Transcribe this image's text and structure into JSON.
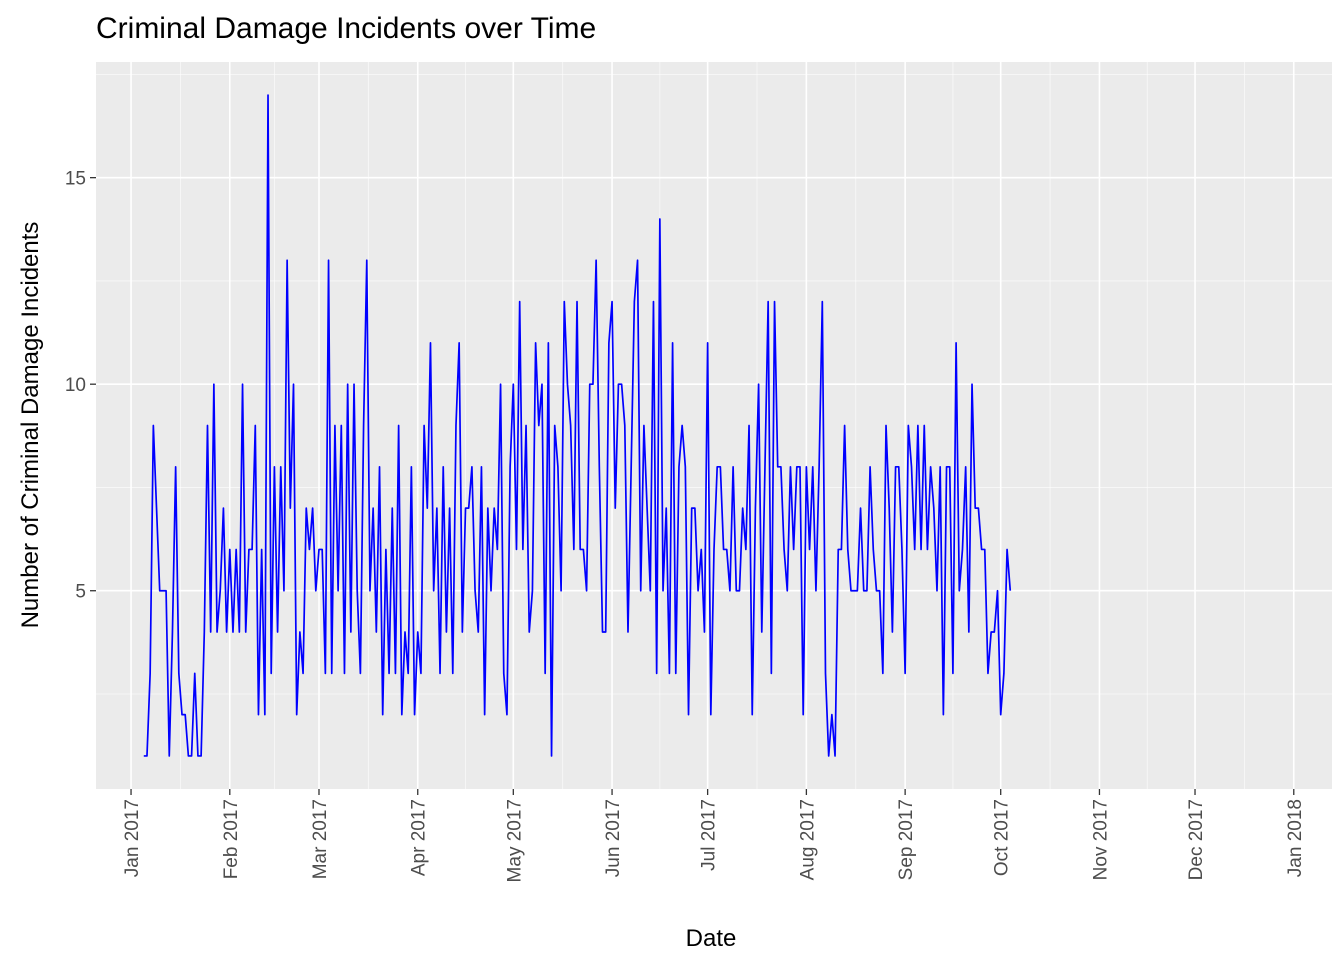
{
  "chart_data": {
    "type": "line",
    "title": "Criminal Damage Incidents over Time",
    "xlabel": "Date",
    "ylabel": "Number of Criminal Damage Incidents",
    "x_type": "date",
    "xlim": [
      "2016-12-21",
      "2018-01-13"
    ],
    "ylim": [
      0.2,
      17.8
    ],
    "yticks": [
      5,
      10,
      15
    ],
    "xticks": [
      {
        "date": "2017-01-01",
        "label": "Jan 2017"
      },
      {
        "date": "2017-02-01",
        "label": "Feb 2017"
      },
      {
        "date": "2017-03-01",
        "label": "Mar 2017"
      },
      {
        "date": "2017-04-01",
        "label": "Apr 2017"
      },
      {
        "date": "2017-05-01",
        "label": "May 2017"
      },
      {
        "date": "2017-06-01",
        "label": "Jun 2017"
      },
      {
        "date": "2017-07-01",
        "label": "Jul 2017"
      },
      {
        "date": "2017-08-01",
        "label": "Aug 2017"
      },
      {
        "date": "2017-09-01",
        "label": "Sep 2017"
      },
      {
        "date": "2017-10-01",
        "label": "Oct 2017"
      },
      {
        "date": "2017-11-01",
        "label": "Nov 2017"
      },
      {
        "date": "2017-12-01",
        "label": "Dec 2017"
      },
      {
        "date": "2018-01-01",
        "label": "Jan 2018"
      }
    ],
    "grid": true,
    "colors": {
      "line": "#0000ff",
      "panel": "#ebebeb",
      "grid": "#ffffff"
    },
    "series": [
      {
        "start_date": "2017-01-05",
        "values": [
          1,
          1,
          3,
          9,
          7,
          5,
          5,
          5,
          1,
          4,
          8,
          3,
          2,
          2,
          1,
          1,
          3,
          1,
          1,
          4,
          9,
          4,
          10,
          4,
          5,
          7,
          4,
          6,
          4,
          6,
          4,
          10,
          4,
          6,
          6,
          9,
          2,
          6,
          2,
          17,
          3,
          8,
          4,
          8,
          5,
          13,
          7,
          10,
          2,
          4,
          3,
          7,
          6,
          7,
          5,
          6,
          6,
          3,
          13,
          3,
          9,
          5,
          9,
          3,
          10,
          4,
          10,
          5,
          3,
          9,
          13,
          5,
          7,
          4,
          8,
          2,
          6,
          3,
          7,
          3,
          9,
          2,
          4,
          3,
          8,
          2,
          4,
          3,
          9,
          7,
          11,
          5,
          7,
          3,
          8,
          4,
          7,
          3,
          9,
          11,
          4,
          7,
          7,
          8,
          5,
          4,
          8,
          2,
          7,
          5,
          7,
          6,
          10,
          3,
          2,
          8,
          10,
          6,
          12,
          6,
          9,
          4,
          5,
          11,
          9,
          10,
          3,
          11,
          1,
          9,
          8,
          5,
          12,
          10,
          9,
          6,
          12,
          6,
          6,
          5,
          10,
          10,
          13,
          8,
          4,
          4,
          11,
          12,
          7,
          10,
          10,
          9,
          4,
          8,
          12,
          13,
          5,
          9,
          7,
          5,
          12,
          3,
          14,
          5,
          7,
          3,
          11,
          3,
          8,
          9,
          8,
          2,
          7,
          7,
          5,
          6,
          4,
          11,
          2,
          6,
          8,
          8,
          6,
          6,
          5,
          8,
          5,
          5,
          7,
          6,
          9,
          2,
          7,
          10,
          4,
          8,
          12,
          3,
          12,
          8,
          8,
          6,
          5,
          8,
          6,
          8,
          8,
          2,
          8,
          6,
          8,
          5,
          8,
          12,
          3,
          1,
          2,
          1,
          6,
          6,
          9,
          6,
          5,
          5,
          5,
          7,
          5,
          5,
          8,
          6,
          5,
          5,
          3,
          9,
          7,
          4,
          8,
          8,
          6,
          3,
          9,
          8,
          6,
          9,
          6,
          9,
          6,
          8,
          7,
          5,
          8,
          2,
          8,
          8,
          3,
          11,
          5,
          6,
          8,
          4,
          10,
          7,
          7,
          6,
          6,
          3,
          4,
          4,
          5,
          2,
          3,
          6,
          5
        ]
      }
    ]
  }
}
